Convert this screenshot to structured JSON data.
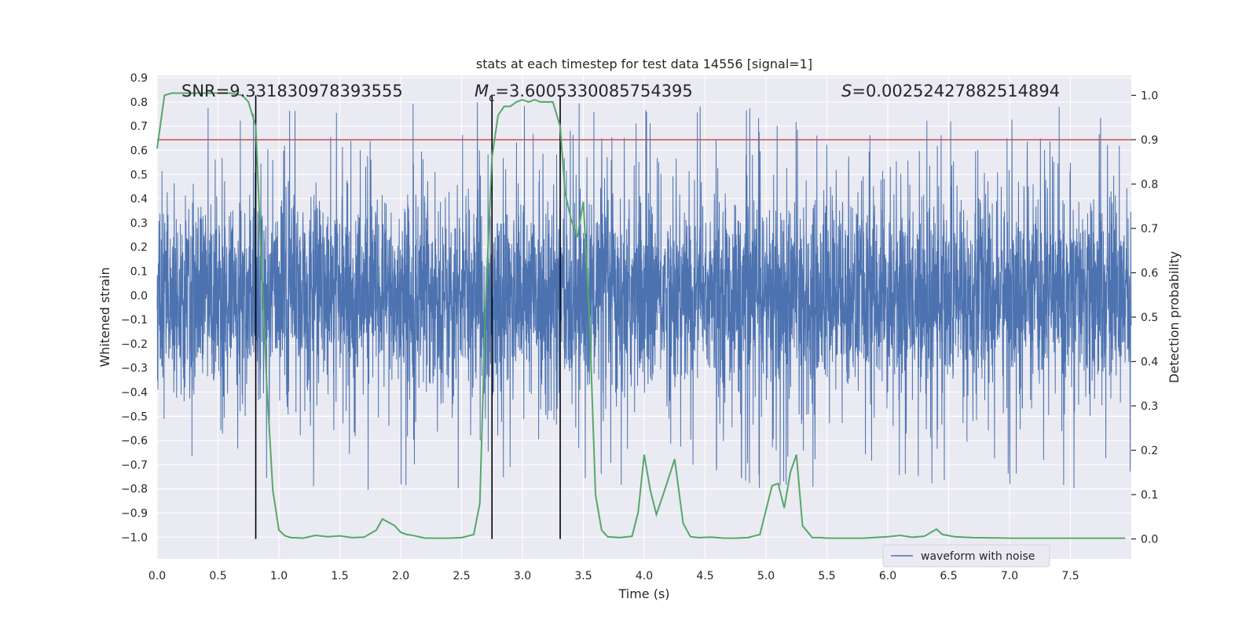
{
  "chart_data": {
    "type": "line",
    "title": "stats at each timestep for test data 14556 [signal=1]",
    "xlabel": "Time (s)",
    "ylabel": "Whitened strain",
    "y2label": "Detection probability",
    "xlim": [
      0.0,
      8.0
    ],
    "ylim": [
      -1.09,
      0.91
    ],
    "y2lim": [
      -0.045,
      1.045
    ],
    "xticks": [
      "0.0",
      "0.5",
      "1.0",
      "1.5",
      "2.0",
      "2.5",
      "3.0",
      "3.5",
      "4.0",
      "4.5",
      "5.0",
      "5.5",
      "6.0",
      "6.5",
      "7.0",
      "7.5"
    ],
    "yticks": [
      "0.9",
      "0.8",
      "0.7",
      "0.6",
      "0.5",
      "0.4",
      "0.3",
      "0.2",
      "0.1",
      "0.0",
      "−0.1",
      "−0.2",
      "−0.3",
      "−0.4",
      "−0.5",
      "−0.6",
      "−0.7",
      "−0.8",
      "−0.9",
      "−1.0"
    ],
    "y2ticks": [
      "1.0",
      "0.9",
      "0.8",
      "0.7",
      "0.6",
      "0.5",
      "0.4",
      "0.3",
      "0.2",
      "0.1",
      "0.0"
    ],
    "grid": true,
    "legend_position": "lower-right",
    "annotations": {
      "snr_text": "SNR=9.331830978393555",
      "mc_symbol": "M",
      "mc_sub": "c",
      "mc_value": "=3.6005330085754395",
      "s_symbol": "S",
      "s_value": "=0.00252427882514894"
    },
    "vertical_lines_x": [
      0.81,
      2.75,
      3.31
    ],
    "threshold_probability": 0.9,
    "series": [
      {
        "name": "waveform with noise",
        "color": "#4c72b0",
        "description": "dense noisy whitened strain, sampled over 0–8 s, envelope approx ±0.45 with spikes to 0.82 and −0.96"
      },
      {
        "color": "#55a868",
        "axis": "right",
        "x": [
          0.0,
          0.06,
          0.12,
          0.2,
          0.3,
          0.4,
          0.5,
          0.6,
          0.7,
          0.75,
          0.81,
          0.86,
          0.9,
          0.95,
          1.0,
          1.05,
          1.1,
          1.2,
          1.3,
          1.4,
          1.5,
          1.6,
          1.7,
          1.8,
          1.85,
          1.95,
          2.0,
          2.05,
          2.1,
          2.2,
          2.3,
          2.4,
          2.5,
          2.6,
          2.65,
          2.7,
          2.75,
          2.8,
          2.85,
          2.9,
          2.95,
          3.0,
          3.05,
          3.1,
          3.15,
          3.2,
          3.25,
          3.31,
          3.35,
          3.4,
          3.45,
          3.5,
          3.55,
          3.6,
          3.65,
          3.7,
          3.8,
          3.9,
          3.95,
          4.0,
          4.05,
          4.1,
          4.18,
          4.25,
          4.32,
          4.38,
          4.45,
          4.55,
          4.65,
          4.75,
          4.85,
          4.95,
          5.05,
          5.1,
          5.15,
          5.2,
          5.25,
          5.3,
          5.38,
          5.45,
          5.5,
          5.6,
          5.8,
          6.0,
          6.1,
          6.2,
          6.3,
          6.4,
          6.45,
          6.55,
          6.7,
          7.0,
          7.5,
          7.95
        ],
        "values": [
          0.88,
          1.0,
          1.005,
          1.005,
          1.005,
          1.005,
          1.005,
          1.005,
          1.0,
          0.985,
          0.93,
          0.6,
          0.35,
          0.11,
          0.02,
          0.007,
          0.003,
          0.002,
          0.008,
          0.005,
          0.007,
          0.003,
          0.004,
          0.02,
          0.045,
          0.03,
          0.015,
          0.01,
          0.008,
          0.002,
          0.002,
          0.002,
          0.003,
          0.01,
          0.08,
          0.55,
          0.86,
          0.955,
          0.975,
          0.975,
          0.985,
          0.99,
          0.985,
          0.99,
          0.985,
          0.985,
          0.985,
          0.93,
          0.78,
          0.72,
          0.68,
          0.76,
          0.5,
          0.1,
          0.02,
          0.005,
          0.003,
          0.006,
          0.06,
          0.19,
          0.11,
          0.055,
          0.12,
          0.18,
          0.035,
          0.005,
          0.003,
          0.004,
          0.002,
          0.002,
          0.003,
          0.01,
          0.12,
          0.125,
          0.07,
          0.15,
          0.19,
          0.03,
          0.003,
          0.003,
          0.002,
          0.002,
          0.002,
          0.005,
          0.008,
          0.004,
          0.006,
          0.022,
          0.01,
          0.005,
          0.003,
          0.002,
          0.002,
          0.002
        ]
      }
    ]
  },
  "legend": {
    "label": "waveform with noise"
  }
}
